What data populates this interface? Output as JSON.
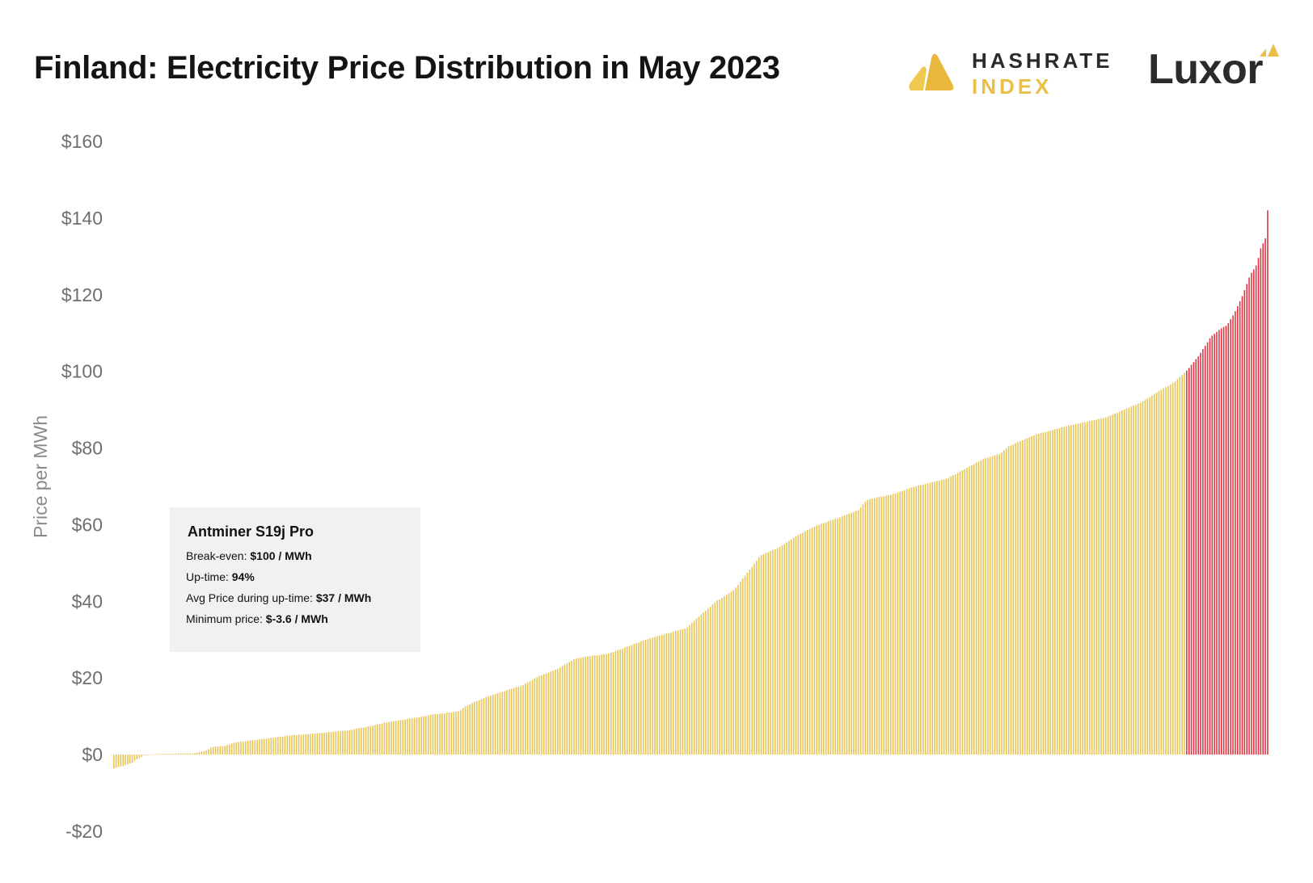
{
  "title": "Finland: Electricity Price Distribution in May 2023",
  "logos": {
    "hashrate_index": {
      "line1": "HASHRATE",
      "line2": "INDEX",
      "colors": {
        "dark": "#2a2a2a",
        "gold": "#e9bf47"
      }
    },
    "luxor": {
      "text": "Luxor",
      "color": "#2b2b2b",
      "accent": "#e9bf47"
    }
  },
  "infobox": {
    "title": "Antminer S19j Pro",
    "rows": [
      {
        "label": "Break-even: ",
        "value": "$100 / MWh"
      },
      {
        "label": "Up-time: ",
        "value": "94%"
      },
      {
        "label": "Avg Price during up-time: ",
        "value": "$37 / MWh"
      },
      {
        "label": "Minimum price: ",
        "value": "$-3.6 / MWh"
      }
    ]
  },
  "chart_data": {
    "type": "bar",
    "title": "Finland: Electricity Price Distribution in May 2023",
    "xlabel": "",
    "ylabel": "Price per MWh",
    "ylim": [
      -20,
      160
    ],
    "yticks": [
      160,
      140,
      120,
      100,
      80,
      60,
      40,
      20,
      0,
      -20
    ],
    "ytick_labels": [
      "$160",
      "$140",
      "$120",
      "$100",
      "$80",
      "$60",
      "$40",
      "$20",
      "$0",
      "-$20"
    ],
    "grid": false,
    "legend": "none",
    "sorted": "ascending",
    "threshold": 100,
    "colors": {
      "below_threshold": "#e8c453",
      "above_threshold": "#e0323f"
    },
    "bar_count": 500,
    "anchors": [
      [
        0,
        -3.6
      ],
      [
        5,
        -3
      ],
      [
        10,
        -2.2
      ],
      [
        13,
        -1.2
      ],
      [
        17,
        -0.3
      ],
      [
        20,
        0
      ],
      [
        25,
        0.2
      ],
      [
        45,
        0.3
      ],
      [
        48,
        0.6
      ],
      [
        53,
        1.2
      ],
      [
        55,
        2
      ],
      [
        63,
        2.3
      ],
      [
        67,
        3
      ],
      [
        72,
        3.4
      ],
      [
        100,
        5
      ],
      [
        130,
        6.2
      ],
      [
        140,
        7
      ],
      [
        155,
        8.5
      ],
      [
        175,
        10
      ],
      [
        180,
        10.5
      ],
      [
        190,
        11
      ],
      [
        195,
        11.3
      ],
      [
        198,
        12.5
      ],
      [
        205,
        14
      ],
      [
        210,
        15
      ],
      [
        220,
        16.5
      ],
      [
        230,
        18
      ],
      [
        240,
        20.5
      ],
      [
        250,
        22.3
      ],
      [
        260,
        25
      ],
      [
        280,
        26.5
      ],
      [
        300,
        30
      ],
      [
        315,
        32
      ],
      [
        323,
        33
      ],
      [
        330,
        36
      ],
      [
        340,
        40
      ],
      [
        350,
        43
      ],
      [
        355,
        46
      ],
      [
        360,
        49
      ],
      [
        365,
        52
      ],
      [
        375,
        54
      ],
      [
        385,
        57
      ],
      [
        395,
        59.5
      ],
      [
        410,
        62
      ],
      [
        420,
        63.8
      ],
      [
        425,
        66.5
      ],
      [
        440,
        68
      ],
      [
        450,
        69.7
      ],
      [
        470,
        72
      ],
      [
        480,
        74.5
      ],
      [
        490,
        77
      ],
      [
        500,
        78.5
      ],
      [
        505,
        80.5
      ],
      [
        520,
        83.5
      ],
      [
        540,
        86
      ],
      [
        560,
        88
      ],
      [
        580,
        92
      ],
      [
        590,
        95
      ],
      [
        598,
        97
      ],
      [
        605,
        100
      ],
      [
        612,
        104
      ],
      [
        619,
        109
      ],
      [
        624,
        111
      ],
      [
        628,
        112
      ],
      [
        632,
        115
      ],
      [
        637,
        120
      ],
      [
        641,
        125
      ],
      [
        645,
        128
      ],
      [
        647,
        132
      ],
      [
        650,
        135
      ],
      [
        651,
        142
      ]
    ]
  }
}
